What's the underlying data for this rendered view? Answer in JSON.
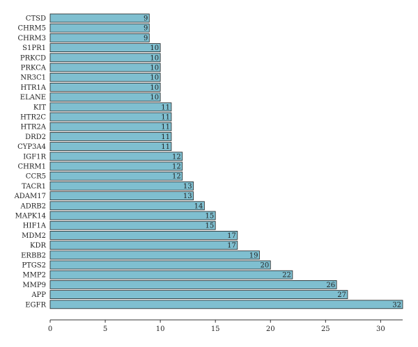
{
  "chart_data": {
    "type": "bar",
    "orientation": "horizontal",
    "categories": [
      "CTSD",
      "CHRM5",
      "CHRM3",
      "S1PR1",
      "PRKCD",
      "PRKCA",
      "NR3C1",
      "HTR1A",
      "ELANE",
      "KIT",
      "HTR2C",
      "HTR2A",
      "DRD2",
      "CYP3A4",
      "IGF1R",
      "CHRM1",
      "CCR5",
      "TACR1",
      "ADAM17",
      "ADRB2",
      "MAPK14",
      "HIF1A",
      "MDM2",
      "KDR",
      "ERBB2",
      "PTGS2",
      "MMP2",
      "MMP9",
      "APP",
      "EGFR"
    ],
    "values": [
      9,
      9,
      9,
      10,
      10,
      10,
      10,
      10,
      10,
      11,
      11,
      11,
      11,
      11,
      12,
      12,
      12,
      13,
      13,
      14,
      15,
      15,
      17,
      17,
      19,
      20,
      22,
      26,
      27,
      32
    ],
    "xlim": [
      0,
      32
    ],
    "xticks": [
      0,
      5,
      10,
      15,
      20,
      25,
      30
    ],
    "title": "",
    "xlabel": "",
    "ylabel": "",
    "grid": false,
    "data_labels": true,
    "bar_color": "#7fbfd0",
    "bar_edge_color": "#222222"
  }
}
